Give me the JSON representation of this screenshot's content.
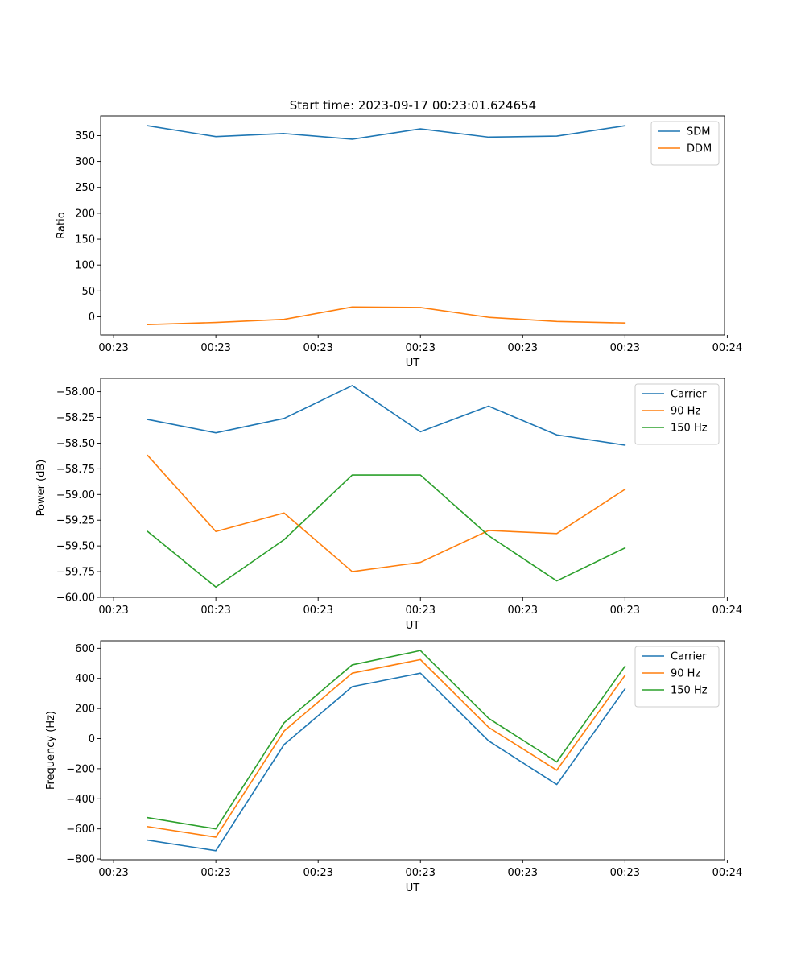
{
  "figure": {
    "title": "Start time: 2023-09-17 00:23:01.624654"
  },
  "colors": {
    "c0": "#1f77b4",
    "c1": "#ff7f0e",
    "c2": "#2ca02c"
  },
  "chart_data": [
    {
      "type": "line",
      "title": "Start time: 2023-09-17 00:23:01.624654",
      "xlabel": "UT",
      "ylabel": "Ratio",
      "x": [
        1,
        2,
        3,
        4,
        5,
        6,
        7,
        8
      ],
      "xlim": [
        0.31,
        9.46
      ],
      "xticks": [
        0.5,
        2,
        3.5,
        5,
        6.5,
        8,
        9.5
      ],
      "xtick_labels": [
        "00:23",
        "00:23",
        "00:23",
        "00:23",
        "00:23",
        "00:23",
        "00:24"
      ],
      "ylim": [
        -35,
        388
      ],
      "yticks": [
        0,
        50,
        100,
        150,
        200,
        250,
        300,
        350
      ],
      "ytick_labels": [
        "0",
        "50",
        "100",
        "150",
        "200",
        "250",
        "300",
        "350"
      ],
      "legend_position": "top-right",
      "series": [
        {
          "name": "SDM",
          "color": "#1f77b4",
          "values": [
            369,
            348,
            354,
            343,
            363,
            347,
            349,
            369
          ]
        },
        {
          "name": "DDM",
          "color": "#ff7f0e",
          "values": [
            -15,
            -11,
            -5,
            19,
            18,
            -1,
            -9,
            -12
          ]
        }
      ]
    },
    {
      "type": "line",
      "title": "",
      "xlabel": "UT",
      "ylabel": "Power (dB)",
      "x": [
        1,
        2,
        3,
        4,
        5,
        6,
        7,
        8
      ],
      "xlim": [
        0.31,
        9.46
      ],
      "xticks": [
        0.5,
        2,
        3.5,
        5,
        6.5,
        8,
        9.5
      ],
      "xtick_labels": [
        "00:23",
        "00:23",
        "00:23",
        "00:23",
        "00:23",
        "00:23",
        "00:24"
      ],
      "ylim": [
        -60,
        -57.87
      ],
      "yticks": [
        -60,
        -59.75,
        -59.5,
        -59.25,
        -59,
        -58.75,
        -58.5,
        -58.25,
        -58
      ],
      "ytick_labels": [
        "−60.00",
        "−59.75",
        "−59.50",
        "−59.25",
        "−59.00",
        "−58.75",
        "−58.50",
        "−58.25",
        "−58.00"
      ],
      "legend_position": "top-right",
      "series": [
        {
          "name": "Carrier",
          "color": "#1f77b4",
          "values": [
            -58.27,
            -58.4,
            -58.26,
            -57.94,
            -58.39,
            -58.14,
            -58.42,
            -58.52
          ]
        },
        {
          "name": "90 Hz",
          "color": "#ff7f0e",
          "values": [
            -58.62,
            -59.36,
            -59.18,
            -59.75,
            -59.66,
            -59.35,
            -59.38,
            -58.95
          ]
        },
        {
          "name": "150 Hz",
          "color": "#2ca02c",
          "values": [
            -59.36,
            -59.9,
            -59.44,
            -58.81,
            -58.81,
            -59.4,
            -59.84,
            -59.52
          ]
        }
      ]
    },
    {
      "type": "line",
      "title": "",
      "xlabel": "UT",
      "ylabel": "Frequency (Hz)",
      "x": [
        1,
        2,
        3,
        4,
        5,
        6,
        7,
        8
      ],
      "xlim": [
        0.31,
        9.46
      ],
      "xticks": [
        0.5,
        2,
        3.5,
        5,
        6.5,
        8,
        9.5
      ],
      "xtick_labels": [
        "00:23",
        "00:23",
        "00:23",
        "00:23",
        "00:23",
        "00:23",
        "00:24"
      ],
      "ylim": [
        -805,
        650
      ],
      "yticks": [
        -800,
        -600,
        -400,
        -200,
        0,
        200,
        400,
        600
      ],
      "ytick_labels": [
        "−800",
        "−600",
        "−400",
        "−200",
        "0",
        "200",
        "400",
        "600"
      ],
      "legend_position": "top-right",
      "series": [
        {
          "name": "Carrier",
          "color": "#1f77b4",
          "values": [
            -675,
            -745,
            -40,
            345,
            435,
            -15,
            -305,
            330
          ]
        },
        {
          "name": "90 Hz",
          "color": "#ff7f0e",
          "values": [
            -585,
            -655,
            50,
            435,
            525,
            75,
            -210,
            420
          ]
        },
        {
          "name": "150 Hz",
          "color": "#2ca02c",
          "values": [
            -525,
            -600,
            105,
            490,
            585,
            135,
            -155,
            480
          ]
        }
      ]
    }
  ]
}
